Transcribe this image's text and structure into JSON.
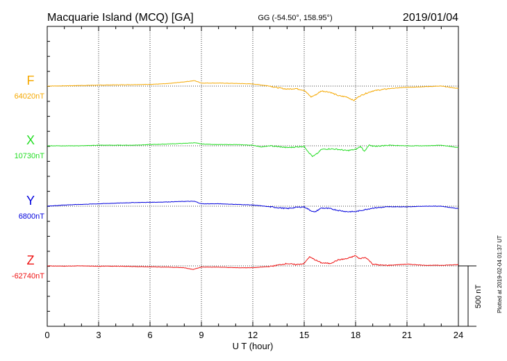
{
  "header": {
    "station": "Macquarie Island (MCQ)  [GA]",
    "coords": "GG (-54.50°, 158.95°)",
    "date": "2019/01/04"
  },
  "plotted_note": "Plotted at 2019-02-04 01:37 UT",
  "chart_data": {
    "type": "line",
    "xlabel": "U T (hour)",
    "xlim": [
      0,
      24
    ],
    "xticks": [
      0,
      3,
      6,
      9,
      12,
      15,
      18,
      21,
      24
    ],
    "xtick_labels": [
      "0",
      "3",
      "6",
      "9",
      "12",
      "15",
      "18",
      "21",
      "24"
    ],
    "scale_bar_label": "500 nT",
    "scale_bar_nT": 500,
    "grid": true,
    "series": [
      {
        "name": "F",
        "baseline_label": "64020nT",
        "baseline_nT": 64020,
        "color": "#f5a800",
        "points": [
          [
            0,
            0
          ],
          [
            1,
            2
          ],
          [
            2,
            5
          ],
          [
            3,
            8
          ],
          [
            4,
            10
          ],
          [
            5,
            12
          ],
          [
            6,
            14
          ],
          [
            7,
            20
          ],
          [
            8,
            35
          ],
          [
            8.6,
            45
          ],
          [
            9,
            25
          ],
          [
            10,
            25
          ],
          [
            11,
            22
          ],
          [
            12,
            18
          ],
          [
            13,
            0
          ],
          [
            13.5,
            -15
          ],
          [
            14,
            -25
          ],
          [
            14.5,
            -20
          ],
          [
            15,
            -35
          ],
          [
            15.4,
            -90
          ],
          [
            15.7,
            -70
          ],
          [
            16,
            -40
          ],
          [
            16.5,
            -50
          ],
          [
            17,
            -80
          ],
          [
            17.5,
            -90
          ],
          [
            17.9,
            -120
          ],
          [
            18.2,
            -85
          ],
          [
            18.6,
            -60
          ],
          [
            19,
            -40
          ],
          [
            19.5,
            -30
          ],
          [
            20,
            -20
          ],
          [
            21,
            -10
          ],
          [
            22,
            -5
          ],
          [
            23,
            0
          ],
          [
            24,
            -20
          ]
        ]
      },
      {
        "name": "X",
        "baseline_label": "10730nT",
        "baseline_nT": 10730,
        "color": "#22dd22",
        "points": [
          [
            0,
            0
          ],
          [
            1,
            0
          ],
          [
            2,
            0
          ],
          [
            3,
            5
          ],
          [
            4,
            5
          ],
          [
            5,
            5
          ],
          [
            6,
            10
          ],
          [
            7,
            15
          ],
          [
            8,
            20
          ],
          [
            8.6,
            25
          ],
          [
            9,
            15
          ],
          [
            10,
            10
          ],
          [
            11,
            10
          ],
          [
            12,
            5
          ],
          [
            12.5,
            -10
          ],
          [
            13,
            0
          ],
          [
            14,
            -15
          ],
          [
            15,
            -5
          ],
          [
            15.3,
            -60
          ],
          [
            15.5,
            -90
          ],
          [
            15.8,
            -60
          ],
          [
            16,
            -30
          ],
          [
            16.5,
            -25
          ],
          [
            17,
            -30
          ],
          [
            17.5,
            -40
          ],
          [
            18,
            -30
          ],
          [
            18.3,
            -5
          ],
          [
            18.5,
            -45
          ],
          [
            18.8,
            5
          ],
          [
            19,
            -5
          ],
          [
            20,
            5
          ],
          [
            21,
            0
          ],
          [
            22,
            0
          ],
          [
            23,
            5
          ],
          [
            24,
            -15
          ]
        ]
      },
      {
        "name": "Y",
        "baseline_label": "6800nT",
        "baseline_nT": 6800,
        "color": "#0000dd",
        "points": [
          [
            0,
            0
          ],
          [
            1,
            10
          ],
          [
            2,
            15
          ],
          [
            3,
            20
          ],
          [
            4,
            25
          ],
          [
            5,
            30
          ],
          [
            6,
            32
          ],
          [
            7,
            35
          ],
          [
            8,
            40
          ],
          [
            8.6,
            40
          ],
          [
            9,
            20
          ],
          [
            10,
            20
          ],
          [
            11,
            15
          ],
          [
            12,
            10
          ],
          [
            13,
            -5
          ],
          [
            14,
            -20
          ],
          [
            14.5,
            -10
          ],
          [
            15,
            -5
          ],
          [
            15.3,
            -30
          ],
          [
            15.6,
            -50
          ],
          [
            16,
            -15
          ],
          [
            16.5,
            -20
          ],
          [
            17,
            -35
          ],
          [
            17.5,
            -45
          ],
          [
            18,
            -45
          ],
          [
            18.5,
            -30
          ],
          [
            19,
            -15
          ],
          [
            20,
            -5
          ],
          [
            21,
            -5
          ],
          [
            22,
            0
          ],
          [
            23,
            0
          ],
          [
            24,
            -20
          ]
        ]
      },
      {
        "name": "Z",
        "baseline_label": "-62740nT",
        "baseline_nT": -62740,
        "color": "#ee1111",
        "points": [
          [
            0,
            0
          ],
          [
            1,
            -2
          ],
          [
            2,
            0
          ],
          [
            3,
            -3
          ],
          [
            4,
            -2
          ],
          [
            5,
            -5
          ],
          [
            6,
            -8
          ],
          [
            7,
            -10
          ],
          [
            8,
            -15
          ],
          [
            8.5,
            -30
          ],
          [
            9,
            -10
          ],
          [
            10,
            -10
          ],
          [
            11,
            -15
          ],
          [
            12,
            -15
          ],
          [
            13,
            -5
          ],
          [
            14,
            20
          ],
          [
            14.5,
            10
          ],
          [
            15,
            20
          ],
          [
            15.3,
            75
          ],
          [
            15.5,
            60
          ],
          [
            16,
            25
          ],
          [
            16.5,
            20
          ],
          [
            17,
            50
          ],
          [
            17.5,
            60
          ],
          [
            18,
            85
          ],
          [
            18.2,
            60
          ],
          [
            18.6,
            70
          ],
          [
            19,
            15
          ],
          [
            19.5,
            5
          ],
          [
            20,
            5
          ],
          [
            21,
            15
          ],
          [
            22,
            5
          ],
          [
            23,
            5
          ],
          [
            24,
            10
          ]
        ]
      }
    ]
  }
}
